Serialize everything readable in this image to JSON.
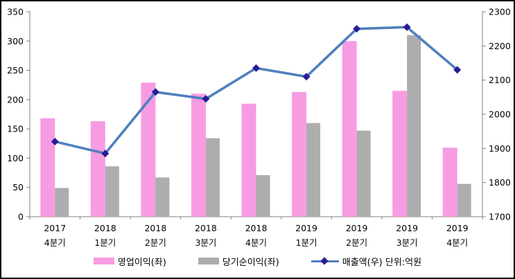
{
  "chart_data": {
    "type": "bar",
    "subtype": "bar-line-combo",
    "title": "",
    "categories": [
      {
        "year": "2017",
        "quarter": "4분기"
      },
      {
        "year": "2018",
        "quarter": "1분기"
      },
      {
        "year": "2018",
        "quarter": "2분기"
      },
      {
        "year": "2018",
        "quarter": "3분기"
      },
      {
        "year": "2018",
        "quarter": "4분기"
      },
      {
        "year": "2019",
        "quarter": "1분기"
      },
      {
        "year": "2019",
        "quarter": "2분기"
      },
      {
        "year": "2019",
        "quarter": "3분기"
      },
      {
        "year": "2019",
        "quarter": "4분기"
      }
    ],
    "series": [
      {
        "name": "영업이익(좌)",
        "kind": "bar",
        "axis": "left",
        "color": "#F79CE3",
        "values": [
          168,
          163,
          229,
          210,
          193,
          213,
          300,
          215,
          118
        ]
      },
      {
        "name": "당기순이익(좌)",
        "kind": "bar",
        "axis": "left",
        "color": "#ADADAD",
        "values": [
          49,
          86,
          67,
          134,
          71,
          160,
          147,
          310,
          56
        ]
      },
      {
        "name": "매출액(우) 단위:억원",
        "kind": "line",
        "axis": "right",
        "color": "#4E80BD",
        "marker": "diamond",
        "marker_color": "#2A1C96",
        "values": [
          1920,
          1885,
          2065,
          2045,
          2135,
          2110,
          2250,
          2255,
          2130
        ]
      }
    ],
    "left_axis": {
      "min": 0,
      "max": 350,
      "step": 50,
      "tick_labels": [
        "0",
        "50",
        "100",
        "150",
        "200",
        "250",
        "300",
        "350"
      ]
    },
    "right_axis": {
      "min": 1700,
      "max": 2300,
      "step": 100,
      "tick_labels": [
        "1700",
        "1800",
        "1900",
        "2000",
        "2100",
        "2200",
        "2300"
      ]
    },
    "legend_position": "bottom",
    "grid": false,
    "axis_color": "#808080"
  }
}
